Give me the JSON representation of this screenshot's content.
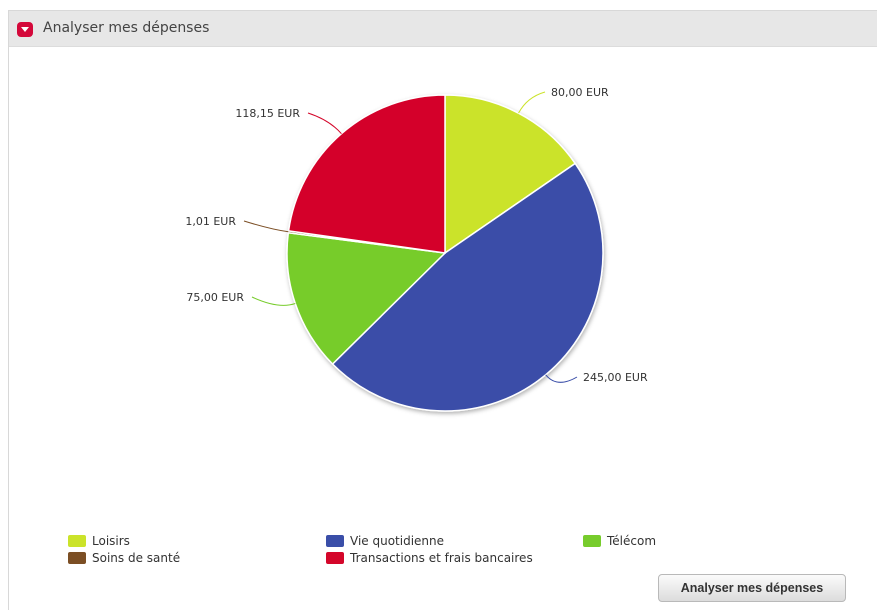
{
  "panel": {
    "title": "Analyser mes dépenses",
    "icon": "collapse-toggle-icon"
  },
  "chart_data": {
    "type": "pie",
    "slices": [
      {
        "name": "Loisirs",
        "value": 80.0,
        "label": "80,00 EUR",
        "color": "#cbe32a"
      },
      {
        "name": "Vie quotidienne",
        "value": 245.0,
        "label": "245,00 EUR",
        "color": "#3a4ea8"
      },
      {
        "name": "Télécom",
        "value": 75.0,
        "label": "75,00 EUR",
        "color": "#77cc2c"
      },
      {
        "name": "Soins de santé",
        "value": 1.01,
        "label": "1,01 EUR",
        "color": "#7b4e24"
      },
      {
        "name": "Transactions et frais bancaires",
        "value": 118.15,
        "label": "118,15 EUR",
        "color": "#d4062a"
      }
    ],
    "legend_position": "bottom"
  },
  "legend": [
    {
      "label": "Loisirs",
      "color": "#cbe32a"
    },
    {
      "label": "Vie quotidienne",
      "color": "#3a4ea8"
    },
    {
      "label": "Télécom",
      "color": "#77cc2c"
    },
    {
      "label": "Soins de santé",
      "color": "#7b4e24"
    },
    {
      "label": "Transactions et frais bancaires",
      "color": "#d4062a"
    }
  ],
  "button": {
    "label": "Analyser mes dépenses"
  }
}
